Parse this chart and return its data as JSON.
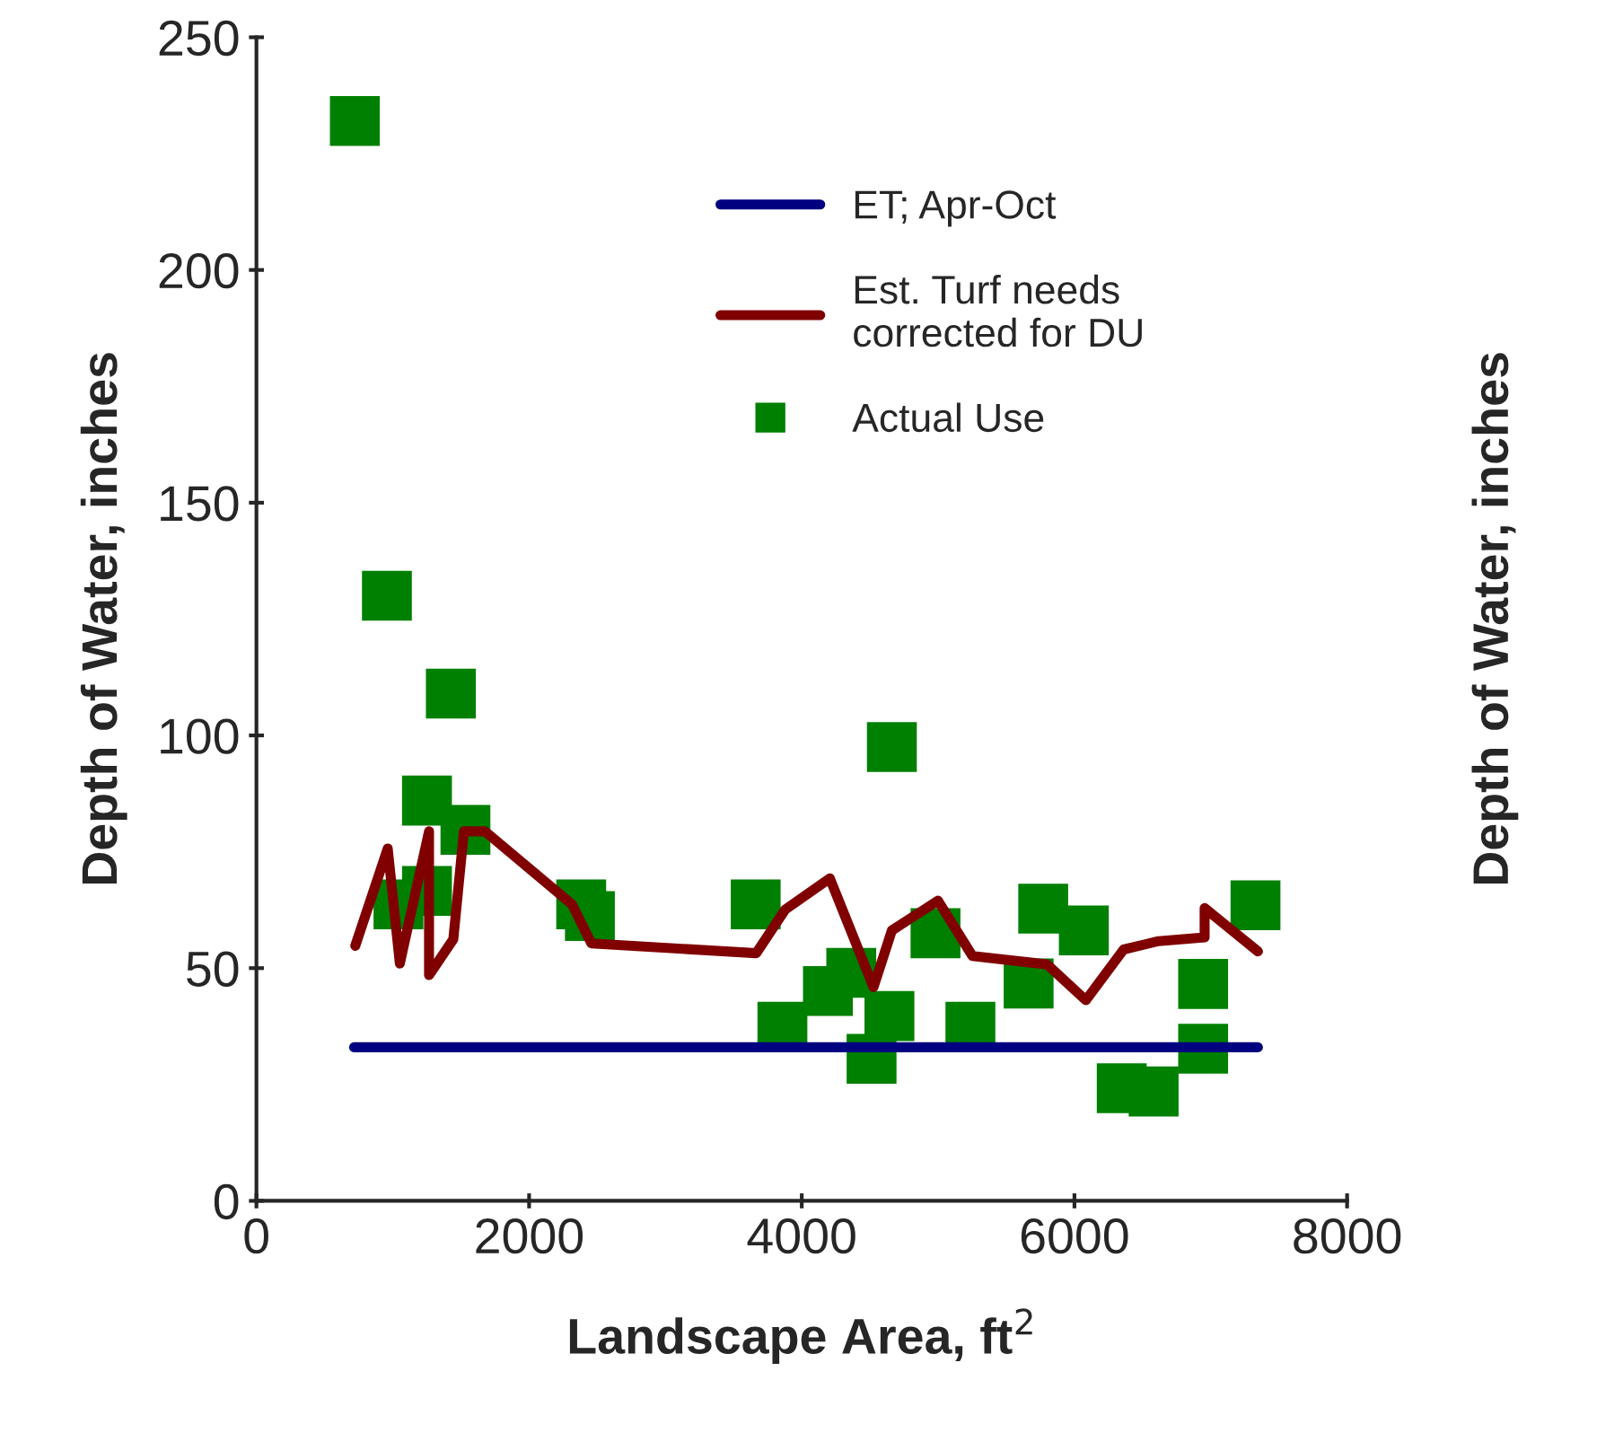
{
  "chart_data": {
    "type": "scatter",
    "xlabel": "Landscape Area, ft$^{2}$",
    "ylabel": "Depth of Water, inches",
    "y2label": "Depth of Water, inches",
    "xlim": [
      0,
      8000
    ],
    "xticks": [
      0,
      2000,
      4000,
      6000,
      8000
    ],
    "ylim": [
      0,
      250
    ],
    "yticks": [
      0,
      50,
      100,
      150,
      200,
      250
    ],
    "grid": false,
    "legend": "top",
    "series": [
      {
        "name": "ET; Apr-Oct",
        "type": "line",
        "color": "#000080",
        "marker": "none",
        "x": [
          716,
          7346
        ],
        "values": [
          33,
          33
        ]
      },
      {
        "name": "Est. Turf needs\ncorrected for DU",
        "type": "line",
        "color": "#800000",
        "marker": "none",
        "x": [
          725,
          963,
          1052,
          1266,
          1266,
          1444,
          1522,
          1675,
          2315,
          2457,
          3666,
          3879,
          4206,
          4526,
          4661,
          4999,
          5252,
          5799,
          6084,
          6361,
          6617,
          6955,
          6955,
          7346
        ],
        "values": [
          54.8,
          75.7,
          51,
          79.4,
          48.5,
          56.2,
          79.4,
          79.4,
          63.7,
          55.3,
          53.2,
          62.6,
          69.3,
          45.9,
          58.1,
          64.5,
          52.6,
          50.8,
          43.1,
          54,
          55.8,
          56.6,
          62.9,
          53.6
        ]
      },
      {
        "name": "Actual Use",
        "color": "#008000",
        "marker": "square",
        "x": [
          722,
          957,
          1426,
          1251,
          1533,
          1042,
          1251,
          2382,
          2446,
          3662,
          3858,
          4661,
          4192,
          4363,
          4643,
          4512,
          4981,
          5237,
          5664,
          5771,
          6069,
          6347,
          6581,
          6944,
          6944,
          7328
        ],
        "values": [
          232,
          130,
          109,
          86,
          79.7,
          63.7,
          66.6,
          63.7,
          61.2,
          63.7,
          37.4,
          97.5,
          45.1,
          49,
          39.7,
          30.5,
          57.5,
          37.4,
          46.7,
          62.8,
          58.1,
          24.2,
          23.5,
          46.6,
          32.7,
          63.5
        ]
      }
    ]
  }
}
